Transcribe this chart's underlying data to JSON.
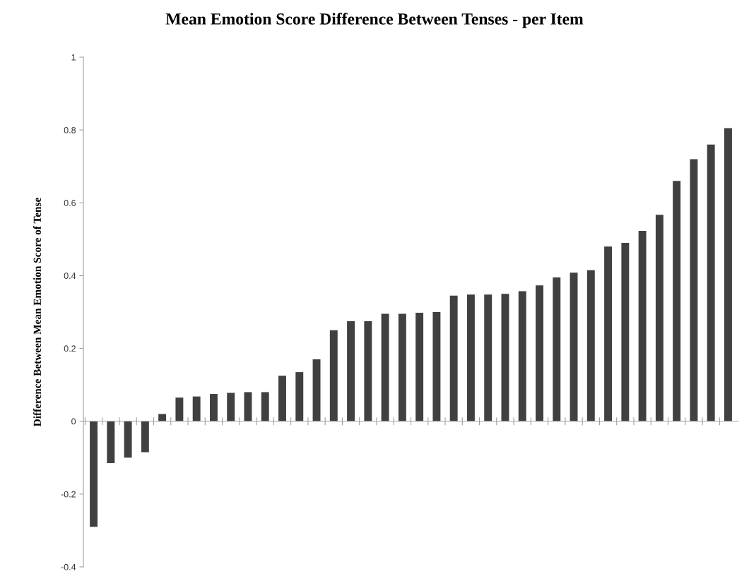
{
  "chart_data": {
    "type": "bar",
    "title": "Mean Emotion Score Difference Between Tenses - per Item",
    "ylabel": "Difference Between Mean Emotion Score of Tense",
    "categories": [
      null,
      null,
      null,
      null,
      null,
      null,
      null,
      null,
      null,
      null,
      null,
      null,
      null,
      null,
      null,
      null,
      null,
      null,
      null,
      null,
      null,
      null,
      null,
      null,
      null,
      null,
      null,
      null,
      null,
      null,
      null,
      null,
      null,
      null,
      null,
      null,
      null,
      null
    ],
    "values": [
      -0.29,
      -0.115,
      -0.1,
      -0.085,
      0.02,
      0.065,
      0.068,
      0.075,
      0.078,
      0.08,
      0.08,
      0.125,
      0.135,
      0.17,
      0.25,
      0.275,
      0.275,
      0.295,
      0.295,
      0.298,
      0.3,
      0.345,
      0.348,
      0.348,
      0.35,
      0.357,
      0.373,
      0.395,
      0.408,
      0.415,
      0.48,
      0.49,
      0.523,
      0.567,
      0.66,
      0.72,
      0.76,
      0.805
    ],
    "color": "#404040",
    "ylim": [
      -0.4,
      1
    ],
    "yticks": [
      -0.4,
      -0.2,
      0,
      0.2,
      0.4,
      0.6,
      0.8,
      1
    ]
  }
}
